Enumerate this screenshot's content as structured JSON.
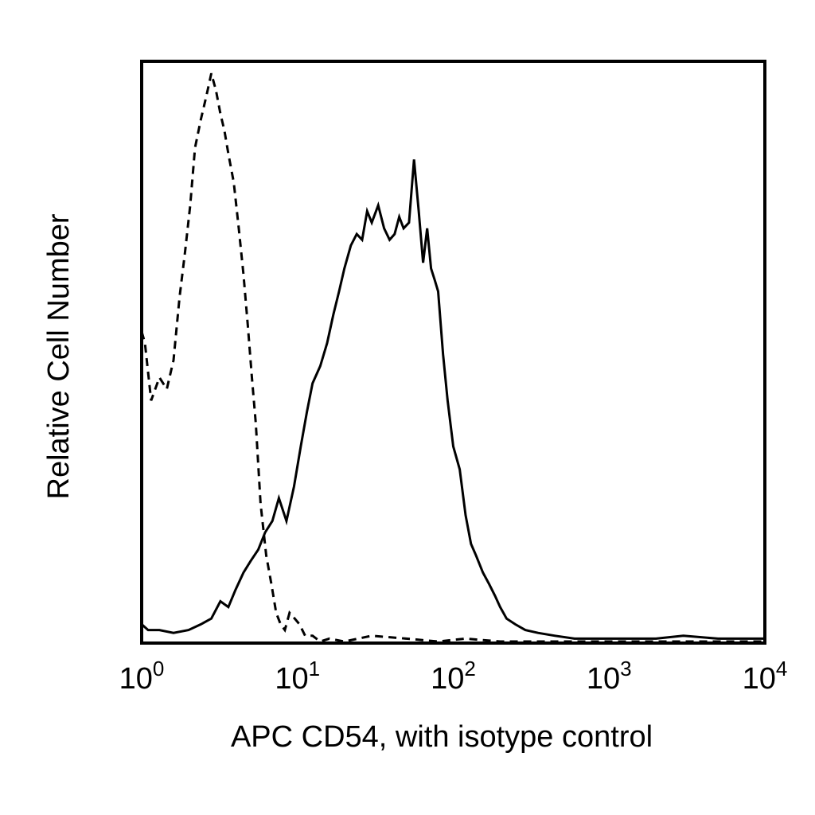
{
  "chart_data": {
    "type": "line",
    "xlabel": "APC CD54, with isotype control",
    "ylabel": "Relative Cell Number",
    "x_scale": "log",
    "xlim": [
      1,
      10000
    ],
    "ylim": [
      0,
      100
    ],
    "x_ticks": [
      {
        "value": 1,
        "base": "10",
        "exp": "0"
      },
      {
        "value": 10,
        "base": "10",
        "exp": "1"
      },
      {
        "value": 100,
        "base": "10",
        "exp": "2"
      },
      {
        "value": 1000,
        "base": "10",
        "exp": "3"
      },
      {
        "value": 10000,
        "base": "10",
        "exp": "4"
      }
    ],
    "grid": false,
    "legend": "none",
    "series": [
      {
        "style": "dashed",
        "color": "#000000",
        "x": [
          1.0,
          1.05,
          1.15,
          1.3,
          1.45,
          1.6,
          1.75,
          1.9,
          2.05,
          2.2,
          2.4,
          2.6,
          2.8,
          3.0,
          3.2,
          3.4,
          3.6,
          3.9,
          4.2,
          4.5,
          4.8,
          5.1,
          5.4,
          5.8,
          6.3,
          6.8,
          7.3,
          7.8,
          8.3,
          8.9,
          9.6,
          10.3,
          11.2,
          12.5,
          14,
          16,
          20,
          30,
          50,
          80,
          120,
          200,
          400,
          800,
          2000,
          5000,
          10000
        ],
        "y": [
          54,
          52,
          42,
          46,
          44,
          49,
          60,
          68,
          76,
          86,
          91,
          95,
          99,
          96,
          92,
          89,
          85,
          80,
          72,
          64,
          55,
          46,
          38,
          24,
          15,
          10,
          5,
          3,
          2,
          5,
          4,
          3,
          1,
          1,
          0,
          0.5,
          0,
          1,
          0.5,
          0,
          0.5,
          0,
          0,
          0,
          0,
          0,
          0
        ]
      },
      {
        "style": "solid",
        "color": "#000000",
        "x": [
          1.0,
          1.1,
          1.3,
          1.6,
          2.0,
          2.4,
          2.8,
          3.2,
          3.6,
          4.0,
          4.5,
          5.0,
          5.6,
          6.2,
          6.9,
          7.6,
          8.5,
          9.5,
          10.5,
          11.5,
          12.5,
          14,
          15.5,
          17,
          18.5,
          20,
          22,
          24,
          26,
          28,
          30,
          33,
          36,
          39,
          42,
          45,
          48,
          52,
          56,
          60,
          64,
          68,
          72,
          76,
          80,
          86,
          92,
          100,
          110,
          120,
          130,
          140,
          155,
          170,
          185,
          200,
          220,
          250,
          290,
          350,
          450,
          600,
          1000,
          2000,
          3000,
          5000,
          10000
        ],
        "y": [
          3,
          2,
          2,
          1.5,
          2,
          3,
          4,
          7,
          6,
          9,
          12,
          14,
          16,
          19,
          21,
          25,
          21,
          27,
          34,
          40,
          45,
          48,
          52,
          57,
          61,
          65,
          69,
          71,
          70,
          75,
          73,
          76,
          72,
          70,
          71,
          74,
          72,
          73,
          84,
          75,
          66,
          72,
          65,
          63,
          61,
          50,
          42,
          34,
          30,
          22,
          17,
          15,
          12,
          10,
          8,
          6,
          4,
          3,
          2,
          1.5,
          1,
          0.5,
          0.5,
          0.5,
          1,
          0.5,
          0.5
        ]
      }
    ]
  }
}
